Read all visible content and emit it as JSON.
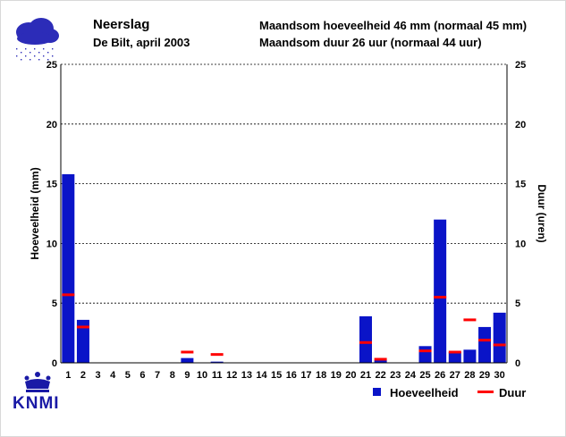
{
  "header": {
    "title": "Neerslag",
    "subtitle": "De Bilt, april 2003",
    "amount_label": "Maandsom hoeveelheid",
    "amount_value": "46 mm",
    "amount_normal": "(normaal 45 mm)",
    "duration_label": "Maandsom duur",
    "duration_value": "26 uur",
    "duration_normal": "(normaal 44 uur)"
  },
  "logo": {
    "text": "KNMI",
    "icon": "crown-icon",
    "weather_icon": "rain-cloud-icon"
  },
  "colors": {
    "bar": "#0a14c8",
    "duration": "#ff0000",
    "logo": "#1a1aa6",
    "cloud": "#2c2cb8",
    "grid": "#000000"
  },
  "chart_data": {
    "type": "bar",
    "title": "Neerslag",
    "subtitle": "De Bilt, april 2003",
    "ylabel": "Hoeveelheid (mm)",
    "y2label": "Duur (uren)",
    "ylim": [
      0,
      25
    ],
    "y2lim": [
      0,
      25
    ],
    "yticks": [
      0,
      5,
      10,
      15,
      20,
      25
    ],
    "grid": "dashed horizontal",
    "legend_position": "bottom-right",
    "categories": [
      "1",
      "2",
      "3",
      "4",
      "5",
      "6",
      "7",
      "8",
      "9",
      "10",
      "11",
      "12",
      "13",
      "14",
      "15",
      "16",
      "17",
      "18",
      "19",
      "20",
      "21",
      "22",
      "23",
      "24",
      "25",
      "26",
      "27",
      "28",
      "29",
      "30"
    ],
    "series": [
      {
        "name": "Hoeveelheid",
        "type": "bar",
        "values": [
          15.8,
          3.6,
          0,
          0,
          0,
          0,
          0,
          0,
          0.4,
          0,
          0.1,
          0,
          0,
          0,
          0,
          0,
          0,
          0,
          0,
          0,
          3.9,
          0.2,
          0,
          0,
          1.4,
          12.0,
          0.9,
          1.1,
          3.0,
          4.2
        ]
      },
      {
        "name": "Duur",
        "type": "marker",
        "values": [
          5.7,
          3.0,
          null,
          null,
          null,
          null,
          null,
          null,
          0.9,
          null,
          0.7,
          null,
          null,
          null,
          null,
          null,
          null,
          null,
          null,
          null,
          1.7,
          0.3,
          null,
          null,
          1.0,
          5.5,
          0.9,
          3.6,
          1.9,
          1.5
        ]
      }
    ]
  }
}
